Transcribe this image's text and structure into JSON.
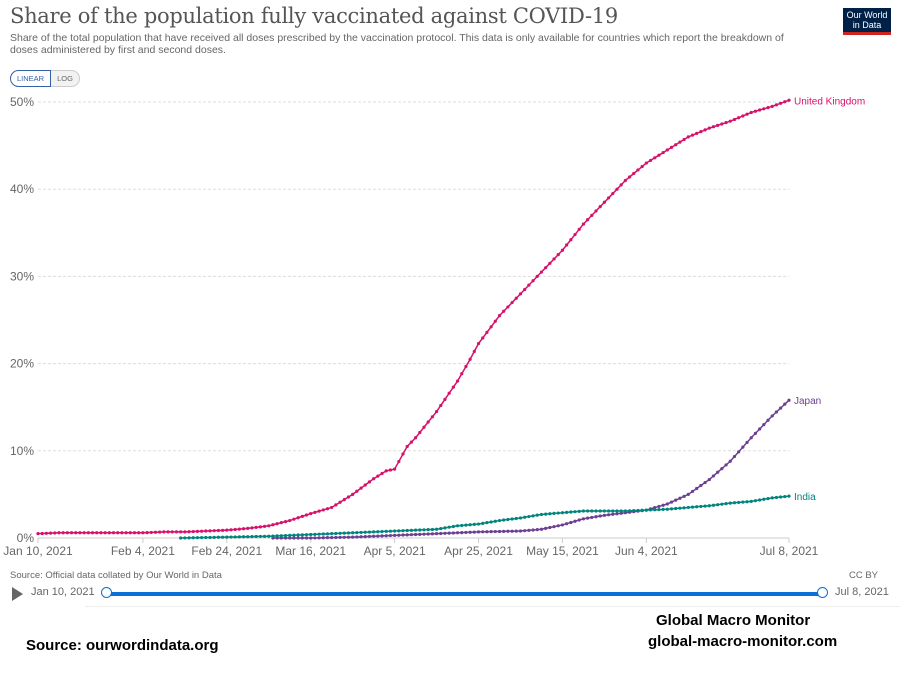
{
  "header": {
    "title": "Share of the population fully vaccinated against COVID-19",
    "subtitle": "Share of the total population that have received all doses prescribed by the vaccination protocol. This data is only available for countries which report the breakdown of doses administered by first and second doses.",
    "logo_line1": "Our World",
    "logo_line2": "in Data"
  },
  "scale_toggle": {
    "linear": "LINEAR",
    "log": "LOG",
    "selected": "LINEAR"
  },
  "footer": {
    "source": "Source: Official data collated by Our World in Data",
    "license": "CC BY",
    "timeline_start": "Jan 10, 2021",
    "timeline_end": "Jul 8, 2021"
  },
  "watermark": {
    "source": "Source:  ourwordindata.org",
    "brand": "Global Macro Monitor",
    "site": "global-macro-monitor.com"
  },
  "colors": {
    "United Kingdom": "#d6106b",
    "Japan": "#6d3e91",
    "India": "#00847e",
    "timeline": "#0b6fd6"
  },
  "chart_data": {
    "type": "line",
    "title": "Share of the population fully vaccinated against COVID-19",
    "xlabel": "",
    "ylabel": "",
    "x_start": "2021-01-10",
    "x_end": "2021-07-08",
    "xticks": [
      {
        "day": 0,
        "label": "Jan 10, 2021"
      },
      {
        "day": 25,
        "label": "Feb 4, 2021"
      },
      {
        "day": 45,
        "label": "Feb 24, 2021"
      },
      {
        "day": 65,
        "label": "Mar 16, 2021"
      },
      {
        "day": 85,
        "label": "Apr 5, 2021"
      },
      {
        "day": 105,
        "label": "Apr 25, 2021"
      },
      {
        "day": 125,
        "label": "May 15, 2021"
      },
      {
        "day": 145,
        "label": "Jun 4, 2021"
      },
      {
        "day": 179,
        "label": "Jul 8, 2021"
      }
    ],
    "yticks": [
      {
        "value": 0,
        "label": "0%"
      },
      {
        "value": 10,
        "label": "10%"
      },
      {
        "value": 20,
        "label": "20%"
      },
      {
        "value": 30,
        "label": "30%"
      },
      {
        "value": 40,
        "label": "40%"
      },
      {
        "value": 50,
        "label": "50%"
      }
    ],
    "ylim": [
      0,
      50
    ],
    "grid": true,
    "legend": "end-of-line labels",
    "series": [
      {
        "name": "United Kingdom",
        "days": [
          0,
          5,
          10,
          15,
          20,
          25,
          30,
          35,
          40,
          45,
          50,
          55,
          60,
          65,
          70,
          75,
          80,
          83,
          85,
          88,
          90,
          95,
          100,
          103,
          105,
          110,
          115,
          120,
          125,
          130,
          135,
          140,
          145,
          150,
          155,
          160,
          165,
          170,
          175,
          179
        ],
        "values": [
          0.5,
          0.6,
          0.6,
          0.6,
          0.6,
          0.6,
          0.7,
          0.7,
          0.8,
          0.9,
          1.1,
          1.4,
          2.0,
          2.8,
          3.5,
          5.0,
          6.8,
          7.7,
          7.9,
          10.5,
          11.5,
          14.5,
          18.0,
          20.5,
          22.3,
          25.5,
          28.0,
          30.5,
          33.0,
          36.0,
          38.5,
          41.0,
          43.0,
          44.5,
          46.0,
          47.0,
          47.8,
          48.8,
          49.5,
          50.2
        ]
      },
      {
        "name": "Japan",
        "days": [
          56,
          65,
          75,
          85,
          95,
          105,
          115,
          120,
          125,
          130,
          135,
          140,
          145,
          150,
          155,
          160,
          165,
          170,
          175,
          179
        ],
        "values": [
          0.0,
          0.0,
          0.1,
          0.3,
          0.5,
          0.7,
          0.8,
          1.0,
          1.5,
          2.2,
          2.6,
          2.9,
          3.2,
          3.9,
          5.0,
          6.7,
          8.8,
          11.5,
          14.0,
          15.8
        ]
      },
      {
        "name": "India",
        "days": [
          34,
          45,
          55,
          65,
          75,
          85,
          95,
          100,
          105,
          110,
          115,
          120,
          125,
          130,
          135,
          140,
          145,
          150,
          155,
          160,
          165,
          170,
          175,
          179
        ],
        "values": [
          0.0,
          0.1,
          0.2,
          0.4,
          0.6,
          0.8,
          1.0,
          1.4,
          1.6,
          2.0,
          2.3,
          2.7,
          2.9,
          3.1,
          3.1,
          3.1,
          3.2,
          3.3,
          3.5,
          3.7,
          4.0,
          4.2,
          4.6,
          4.8
        ]
      }
    ]
  }
}
